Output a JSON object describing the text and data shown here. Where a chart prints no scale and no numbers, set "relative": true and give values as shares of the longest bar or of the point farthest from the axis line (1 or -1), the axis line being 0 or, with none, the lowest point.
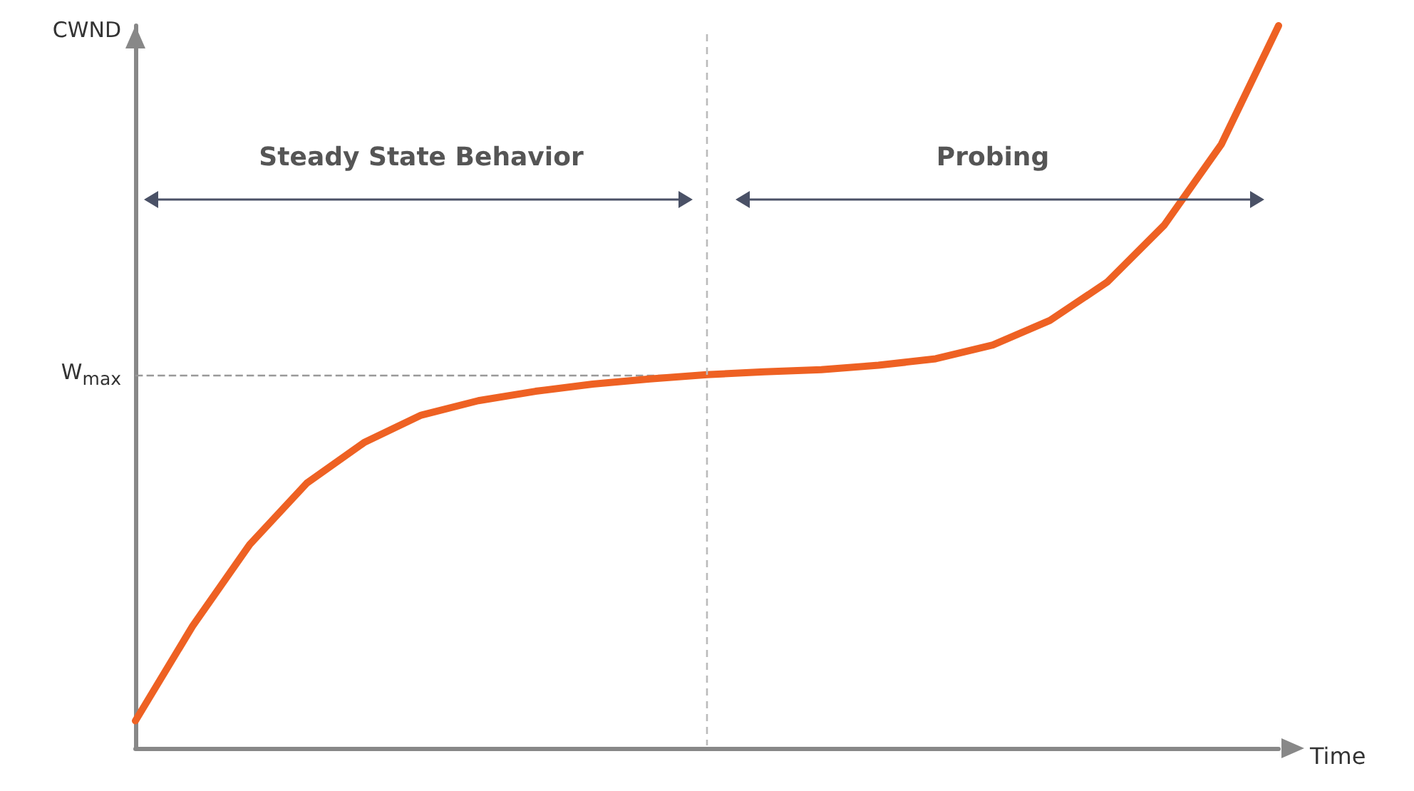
{
  "chart_data": {
    "type": "line",
    "relative": true,
    "xlabel": "Time",
    "ylabel": "CWND",
    "categories": [
      null,
      null,
      null,
      null,
      null,
      null,
      null,
      null,
      null,
      null,
      null,
      null,
      null,
      null,
      null,
      null,
      null,
      null,
      null,
      null,
      null
    ],
    "series": [
      {
        "color": "#ee6123",
        "values": [
          0.038,
          0.169,
          0.282,
          0.367,
          0.423,
          0.461,
          0.481,
          0.494,
          0.504,
          0.511,
          0.517,
          0.521,
          0.524,
          0.53,
          0.539,
          0.558,
          0.592,
          0.645,
          0.724,
          0.836,
          1.0
        ]
      }
    ],
    "ref_lines": [
      {
        "axis": "y",
        "value": 0.517,
        "label": "W$_{max}$",
        "color": "#999999",
        "line_style": "dashed"
      }
    ],
    "annotations": [
      "Steady State Behavior",
      "Probing"
    ],
    "grid": false,
    "marker": "none",
    "line_style": "solid"
  }
}
